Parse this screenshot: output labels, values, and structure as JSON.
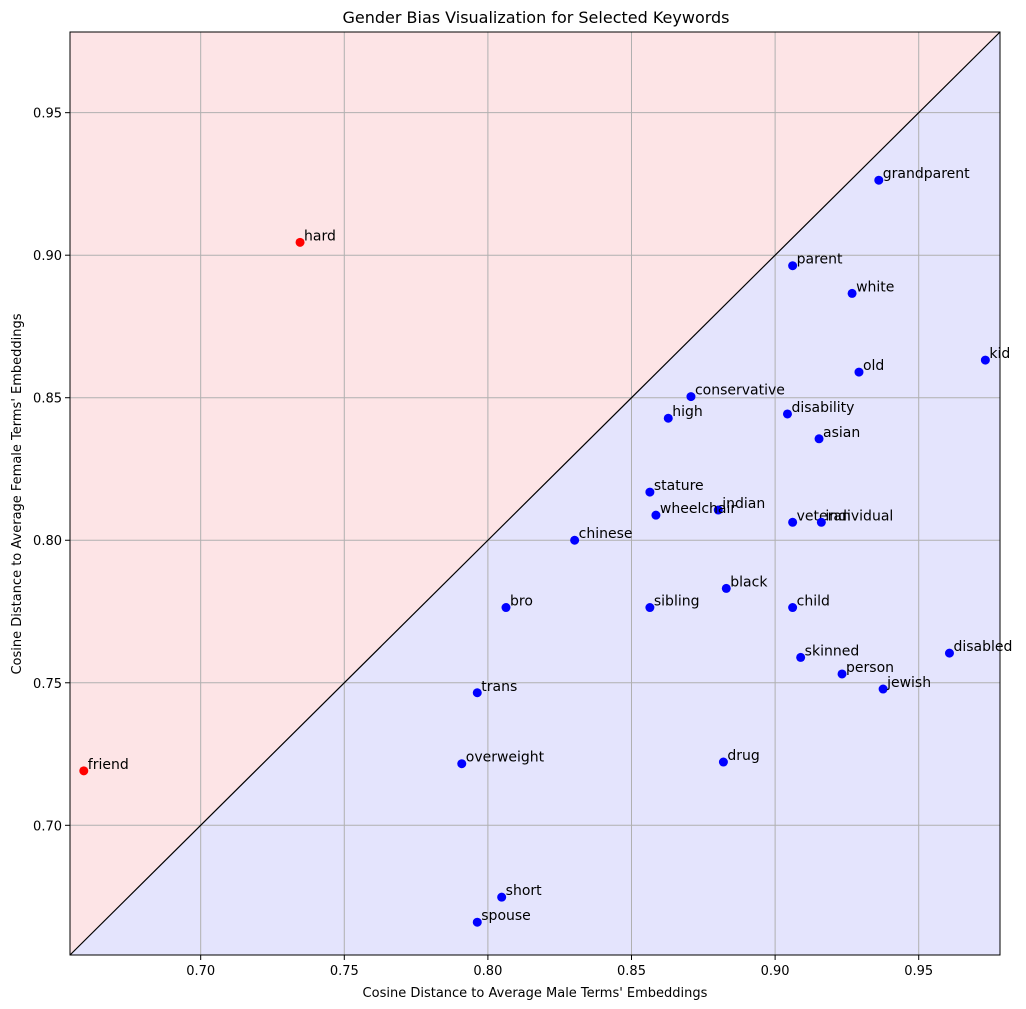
{
  "chart_data": {
    "type": "scatter",
    "title": "Gender Bias Visualization for Selected Keywords",
    "xlabel": "Cosine Distance to Average Male Terms' Embeddings",
    "ylabel": "Cosine Distance to Average Female Terms' Embeddings",
    "xlim": [
      0.6545,
      0.9783
    ],
    "ylim": [
      0.6545,
      0.9783
    ],
    "xticks": [
      0.7,
      0.75,
      0.8,
      0.85,
      0.9,
      0.95
    ],
    "yticks": [
      0.7,
      0.75,
      0.8,
      0.85,
      0.9,
      0.95
    ],
    "grid": true,
    "diagonal": true,
    "region_colors": {
      "above": "#fde4e6",
      "below": "#e4e4fd"
    },
    "colors": {
      "male_biased": "#0000ff",
      "female_biased": "#ff0000",
      "grid": "#b0b0b0",
      "diagonal": "#000000"
    },
    "points": [
      {
        "label": "hard",
        "x": 0.7346,
        "y": 0.9045,
        "color": "#ff0000"
      },
      {
        "label": "friend",
        "x": 0.6593,
        "y": 0.7191,
        "color": "#ff0000"
      },
      {
        "label": "grandparent",
        "x": 0.9361,
        "y": 0.9263,
        "color": "#0000ff"
      },
      {
        "label": "parent",
        "x": 0.9061,
        "y": 0.8963,
        "color": "#0000ff"
      },
      {
        "label": "white",
        "x": 0.9268,
        "y": 0.8866,
        "color": "#0000ff"
      },
      {
        "label": "kid",
        "x": 0.9732,
        "y": 0.8632,
        "color": "#0000ff"
      },
      {
        "label": "old",
        "x": 0.9292,
        "y": 0.859,
        "color": "#0000ff"
      },
      {
        "label": "conservative",
        "x": 0.8707,
        "y": 0.8504,
        "color": "#0000ff"
      },
      {
        "label": "disability",
        "x": 0.9043,
        "y": 0.8443,
        "color": "#0000ff"
      },
      {
        "label": "high",
        "x": 0.8628,
        "y": 0.8428,
        "color": "#0000ff"
      },
      {
        "label": "asian",
        "x": 0.9153,
        "y": 0.8356,
        "color": "#0000ff"
      },
      {
        "label": "stature",
        "x": 0.8564,
        "y": 0.8169,
        "color": "#0000ff"
      },
      {
        "label": "indian",
        "x": 0.8802,
        "y": 0.8106,
        "color": "#0000ff"
      },
      {
        "label": "wheelchair",
        "x": 0.8585,
        "y": 0.8088,
        "color": "#0000ff"
      },
      {
        "label": "veteran",
        "x": 0.9061,
        "y": 0.8063,
        "color": "#0000ff"
      },
      {
        "label": "individual",
        "x": 0.9161,
        "y": 0.8063,
        "color": "#0000ff"
      },
      {
        "label": "chinese",
        "x": 0.8302,
        "y": 0.8,
        "color": "#0000ff"
      },
      {
        "label": "black",
        "x": 0.883,
        "y": 0.7831,
        "color": "#0000ff"
      },
      {
        "label": "bro",
        "x": 0.8063,
        "y": 0.7764,
        "color": "#0000ff"
      },
      {
        "label": "sibling",
        "x": 0.8564,
        "y": 0.7764,
        "color": "#0000ff"
      },
      {
        "label": "child",
        "x": 0.9061,
        "y": 0.7764,
        "color": "#0000ff"
      },
      {
        "label": "disabled",
        "x": 0.9607,
        "y": 0.7604,
        "color": "#0000ff"
      },
      {
        "label": "skinned",
        "x": 0.9089,
        "y": 0.7589,
        "color": "#0000ff"
      },
      {
        "label": "person",
        "x": 0.9233,
        "y": 0.7531,
        "color": "#0000ff"
      },
      {
        "label": "jewish",
        "x": 0.9376,
        "y": 0.7478,
        "color": "#0000ff"
      },
      {
        "label": "trans",
        "x": 0.7963,
        "y": 0.7465,
        "color": "#0000ff"
      },
      {
        "label": "overweight",
        "x": 0.7909,
        "y": 0.7216,
        "color": "#0000ff"
      },
      {
        "label": "drug",
        "x": 0.882,
        "y": 0.7222,
        "color": "#0000ff"
      },
      {
        "label": "short",
        "x": 0.8048,
        "y": 0.6748,
        "color": "#0000ff"
      },
      {
        "label": "spouse",
        "x": 0.7963,
        "y": 0.666,
        "color": "#0000ff"
      }
    ]
  }
}
